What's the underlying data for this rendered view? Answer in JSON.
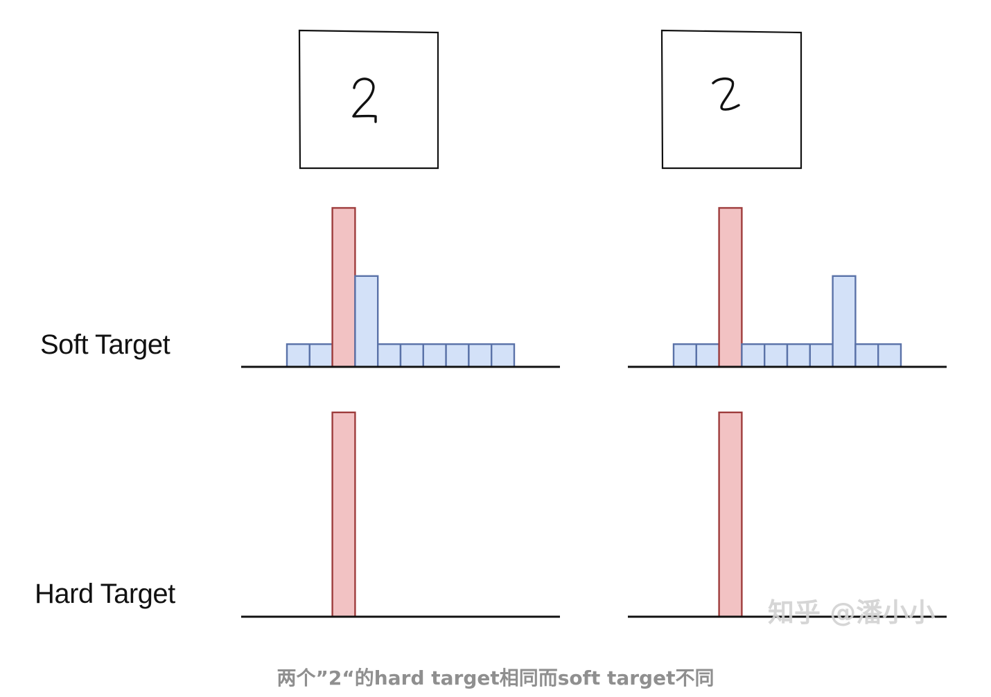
{
  "labels": {
    "soft_target": "Soft Target",
    "hard_target": "Hard Target"
  },
  "caption": "两个”2“的hard target相同而soft target不同",
  "watermark": "知乎 @潘小小",
  "colors": {
    "target_fill": "#f2c2c3",
    "target_stroke": "#9e3c3c",
    "other_fill": "#d3e1f8",
    "other_stroke": "#5a72a8",
    "axis": "#111111"
  },
  "chart_data": [
    {
      "type": "bar",
      "panel": "left digit 2 — Soft Target",
      "values": [
        1,
        1,
        7,
        4,
        1,
        1,
        1,
        1,
        1,
        1
      ],
      "highlight_index": 2
    },
    {
      "type": "bar",
      "panel": "right digit 2 — Soft Target",
      "values": [
        1,
        1,
        7,
        1,
        1,
        1,
        1,
        4,
        1,
        1
      ],
      "highlight_index": 2
    },
    {
      "type": "bar",
      "panel": "left digit 2 — Hard Target",
      "values": [
        0,
        0,
        9,
        0,
        0,
        0,
        0,
        0,
        0,
        0
      ],
      "highlight_index": 2
    },
    {
      "type": "bar",
      "panel": "right digit 2 — Hard Target",
      "values": [
        0,
        0,
        9,
        0,
        0,
        0,
        0,
        0,
        0,
        0
      ],
      "highlight_index": 2
    }
  ]
}
